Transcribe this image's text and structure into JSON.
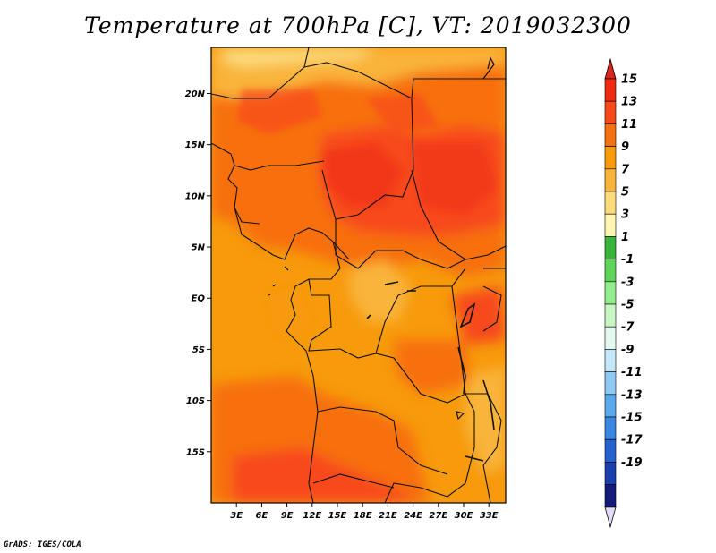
{
  "title": "Temperature at 700hPa [C], VT: 2019032300",
  "credit": "GrADS: IGES/COLA",
  "map": {
    "lat_labels": [
      "20N",
      "15N",
      "10N",
      "5N",
      "EQ",
      "5S",
      "10S",
      "15S"
    ],
    "lat_values": [
      20,
      15,
      10,
      5,
      0,
      -5,
      -10,
      -15
    ],
    "lon_labels": [
      "3E",
      "6E",
      "9E",
      "12E",
      "15E",
      "18E",
      "21E",
      "24E",
      "27E",
      "30E",
      "33E"
    ],
    "lon_values": [
      3,
      6,
      9,
      12,
      15,
      18,
      21,
      24,
      27,
      30,
      33
    ],
    "lon_range": [
      0,
      35
    ],
    "lat_range": [
      -20,
      24.5
    ]
  },
  "colorbar": {
    "labels": [
      "15",
      "13",
      "11",
      "9",
      "7",
      "5",
      "3",
      "1",
      "-1",
      "-3",
      "-5",
      "-7",
      "-9",
      "-11",
      "-13",
      "-15",
      "-17",
      "-19"
    ],
    "colors": [
      "#ee2a10",
      "#f7491a",
      "#f7700f",
      "#f79a0c",
      "#f9b43a",
      "#fbdb7a",
      "#fff5b0",
      "#37b43a",
      "#5fd35a",
      "#93ed8b",
      "#c6f6c2",
      "#e3f9ef",
      "#c4e8f8",
      "#8ec9f2",
      "#5aa9ec",
      "#3a86e0",
      "#2361cf",
      "#1a3faf",
      "#121a7a"
    ],
    "top_arrow_color": "#d9261e",
    "bottom_arrow_color": "#e4dcf6"
  }
}
